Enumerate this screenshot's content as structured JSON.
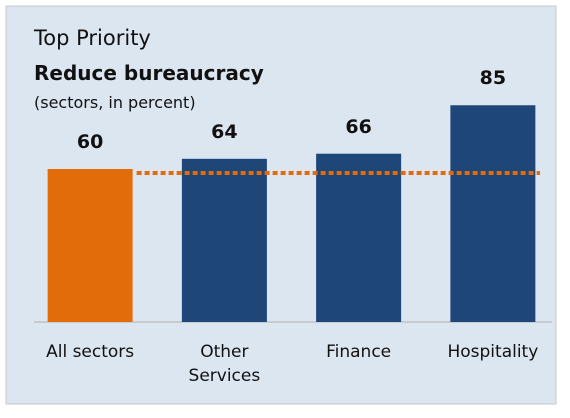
{
  "chart_data": {
    "type": "bar",
    "title": "Top Priority",
    "subtitle": "Reduce bureaucracy",
    "note": "(sectors, in percent)",
    "categories": [
      "All sectors",
      "Other Services",
      "Finance",
      "Hospitality"
    ],
    "values": [
      60,
      64,
      66,
      85
    ],
    "colors": [
      "#e36c0a",
      "#1f4678",
      "#1f4678",
      "#1f4678"
    ],
    "reference_line_color": "#e36c0a",
    "ylim": [
      0,
      100
    ]
  }
}
